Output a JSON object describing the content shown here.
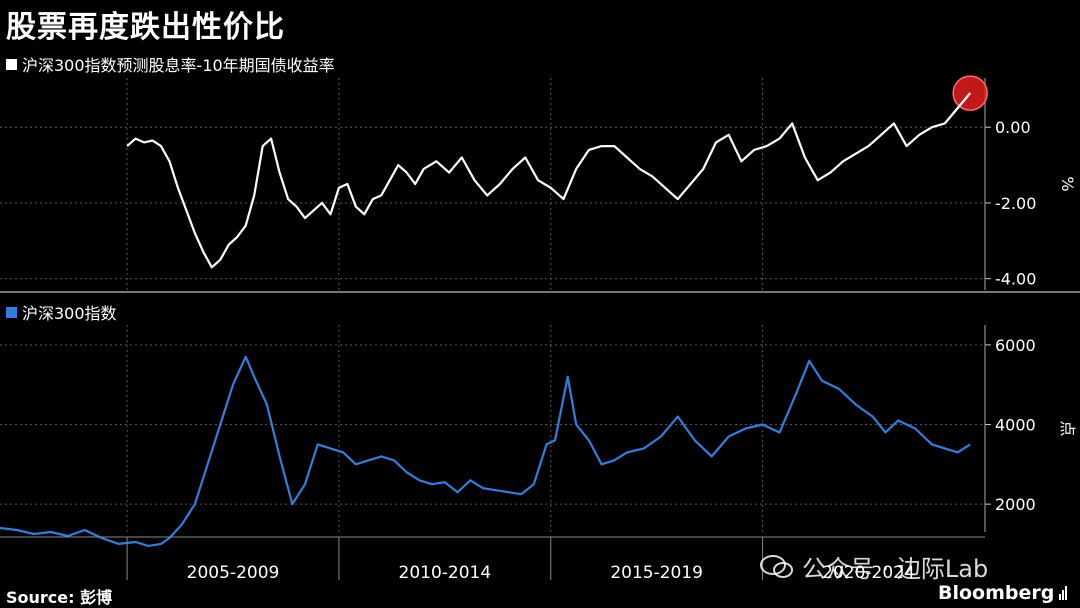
{
  "title": "股票再度跌出性价比",
  "source": "Source: 彭博",
  "watermark": "公众号 · 边际Lab",
  "brand": "Bloomberg",
  "colors": {
    "background": "#000000",
    "top_series": "#ffffff",
    "bottom_series": "#2f7fe0",
    "highlight": "#e31d1d",
    "grid": "#555555"
  },
  "chart_data": [
    {
      "type": "line",
      "title": "沪深300指数预测股息率-10年期国债收益率",
      "ylabel": "%",
      "ylim": [
        -4.3,
        1.3
      ],
      "yticks": [
        0,
        -2,
        -4
      ],
      "ytick_labels": [
        "0.00",
        "-2.00",
        "-4.00"
      ],
      "grid": true,
      "series": [
        {
          "name": "沪深300指数预测股息率-10年期国债收益率",
          "x": [
            2005.0,
            2005.2,
            2005.4,
            2005.6,
            2005.8,
            2006.0,
            2006.2,
            2006.4,
            2006.6,
            2006.8,
            2007.0,
            2007.2,
            2007.4,
            2007.6,
            2007.8,
            2008.0,
            2008.2,
            2008.4,
            2008.6,
            2008.8,
            2009.0,
            2009.2,
            2009.4,
            2009.6,
            2009.8,
            2010.0,
            2010.2,
            2010.4,
            2010.6,
            2010.8,
            2011.0,
            2011.2,
            2011.4,
            2011.6,
            2011.8,
            2012.0,
            2012.3,
            2012.6,
            2012.9,
            2013.2,
            2013.5,
            2013.8,
            2014.1,
            2014.4,
            2014.7,
            2015.0,
            2015.3,
            2015.6,
            2015.9,
            2016.2,
            2016.5,
            2016.8,
            2017.1,
            2017.4,
            2017.7,
            2018.0,
            2018.3,
            2018.6,
            2018.9,
            2019.2,
            2019.5,
            2019.8,
            2020.1,
            2020.4,
            2020.7,
            2021.0,
            2021.3,
            2021.6,
            2021.9,
            2022.2,
            2022.5,
            2022.8,
            2023.1,
            2023.4,
            2023.7,
            2024.0,
            2024.3,
            2024.6,
            2024.9
          ],
          "values": [
            -0.5,
            -0.3,
            -0.4,
            -0.35,
            -0.5,
            -0.9,
            -1.6,
            -2.2,
            -2.8,
            -3.3,
            -3.7,
            -3.5,
            -3.1,
            -2.9,
            -2.6,
            -1.8,
            -0.5,
            -0.3,
            -1.2,
            -1.9,
            -2.1,
            -2.4,
            -2.2,
            -2.0,
            -2.3,
            -1.6,
            -1.5,
            -2.1,
            -2.3,
            -1.9,
            -1.8,
            -1.4,
            -1.0,
            -1.2,
            -1.5,
            -1.1,
            -0.9,
            -1.2,
            -0.8,
            -1.4,
            -1.8,
            -1.5,
            -1.1,
            -0.8,
            -1.4,
            -1.6,
            -1.9,
            -1.1,
            -0.6,
            -0.5,
            -0.5,
            -0.8,
            -1.1,
            -1.3,
            -1.6,
            -1.9,
            -1.5,
            -1.1,
            -0.4,
            -0.2,
            -0.9,
            -0.6,
            -0.5,
            -0.3,
            0.1,
            -0.8,
            -1.4,
            -1.2,
            -0.9,
            -0.7,
            -0.5,
            -0.2,
            0.1,
            -0.5,
            -0.2,
            0.0,
            0.1,
            0.5,
            0.9
          ]
        }
      ],
      "highlight": {
        "x": 2024.9,
        "value": 0.9
      }
    },
    {
      "type": "line",
      "title": "沪深300指数",
      "ylabel": "点",
      "ylim": [
        1300,
        6500
      ],
      "yticks": [
        2000,
        4000,
        6000
      ],
      "ytick_labels": [
        "2000",
        "4000",
        "6000"
      ],
      "grid": true,
      "series": [
        {
          "name": "沪深300指数",
          "x": [
            2002.0,
            2002.4,
            2002.8,
            2003.2,
            2003.6,
            2004.0,
            2004.4,
            2004.8,
            2005.2,
            2005.5,
            2005.8,
            2006.0,
            2006.3,
            2006.6,
            2006.9,
            2007.2,
            2007.5,
            2007.8,
            2008.0,
            2008.3,
            2008.6,
            2008.9,
            2009.2,
            2009.5,
            2009.8,
            2010.1,
            2010.4,
            2010.7,
            2011.0,
            2011.3,
            2011.6,
            2011.9,
            2012.2,
            2012.5,
            2012.8,
            2013.1,
            2013.4,
            2013.7,
            2014.0,
            2014.3,
            2014.6,
            2014.9,
            2015.1,
            2015.4,
            2015.6,
            2015.9,
            2016.2,
            2016.5,
            2016.8,
            2017.2,
            2017.6,
            2018.0,
            2018.4,
            2018.8,
            2019.2,
            2019.6,
            2020.0,
            2020.4,
            2020.8,
            2021.1,
            2021.4,
            2021.8,
            2022.2,
            2022.6,
            2022.9,
            2023.2,
            2023.6,
            2024.0,
            2024.3,
            2024.6,
            2024.9
          ],
          "values": [
            1400,
            1350,
            1250,
            1300,
            1200,
            1350,
            1150,
            1000,
            1050,
            950,
            1000,
            1150,
            1500,
            2000,
            3000,
            4000,
            5000,
            5700,
            5200,
            4500,
            3200,
            2000,
            2500,
            3500,
            3400,
            3300,
            3000,
            3100,
            3200,
            3100,
            2800,
            2600,
            2500,
            2550,
            2300,
            2600,
            2400,
            2350,
            2300,
            2250,
            2500,
            3500,
            3600,
            5200,
            4000,
            3600,
            3000,
            3100,
            3300,
            3400,
            3700,
            4200,
            3600,
            3200,
            3700,
            3900,
            4000,
            3800,
            4800,
            5600,
            5100,
            4900,
            4500,
            4200,
            3800,
            4100,
            3900,
            3500,
            3400,
            3300,
            3500
          ]
        }
      ],
      "x_periods": [
        "2005-2009",
        "2010-2014",
        "2015-2019",
        "2020-2024"
      ]
    }
  ]
}
